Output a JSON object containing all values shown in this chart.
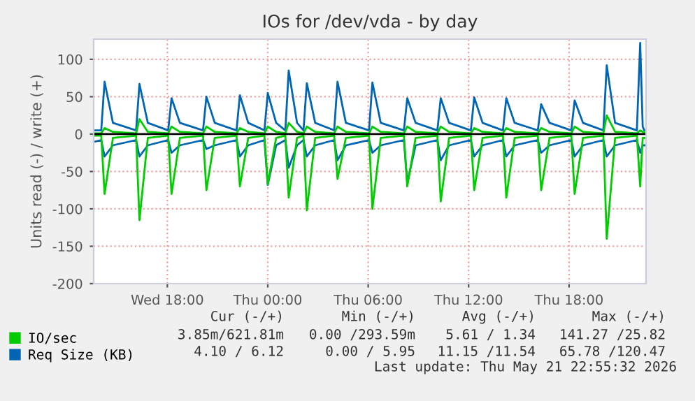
{
  "chart_data": {
    "type": "line",
    "title": "IOs for /dev/vda - by day",
    "ylabel": "Units read (-) / write (+)",
    "x": [
      "2026-05-20T13:42",
      "2026-05-20T14:03",
      "2026-05-20T14:15",
      "2026-05-20T14:45",
      "2026-05-20T16:08",
      "2026-05-20T16:20",
      "2026-05-20T16:50",
      "2026-05-20T18:03",
      "2026-05-20T18:15",
      "2026-05-20T18:45",
      "2026-05-20T20:08",
      "2026-05-20T20:20",
      "2026-05-20T20:50",
      "2026-05-20T22:08",
      "2026-05-20T22:20",
      "2026-05-20T22:50",
      "2026-05-20T23:48",
      "2026-05-21T00:00",
      "2026-05-21T00:30",
      "2026-05-21T01:03",
      "2026-05-21T01:15",
      "2026-05-21T01:45",
      "2026-05-21T02:08",
      "2026-05-21T02:20",
      "2026-05-21T02:50",
      "2026-05-21T03:58",
      "2026-05-21T04:10",
      "2026-05-21T04:40",
      "2026-05-21T06:03",
      "2026-05-21T06:15",
      "2026-05-21T06:45",
      "2026-05-21T08:08",
      "2026-05-21T08:20",
      "2026-05-21T08:50",
      "2026-05-21T10:08",
      "2026-05-21T10:20",
      "2026-05-21T10:50",
      "2026-05-21T12:08",
      "2026-05-21T12:20",
      "2026-05-21T12:50",
      "2026-05-21T14:03",
      "2026-05-21T14:15",
      "2026-05-21T14:45",
      "2026-05-21T16:08",
      "2026-05-21T16:20",
      "2026-05-21T16:50",
      "2026-05-21T18:08",
      "2026-05-21T18:20",
      "2026-05-21T18:50",
      "2026-05-21T20:03",
      "2026-05-21T20:15",
      "2026-05-21T20:45",
      "2026-05-21T22:03",
      "2026-05-21T22:15",
      "2026-05-21T22:24",
      "2026-05-21T22:30"
    ],
    "series": [
      {
        "color": "#0066b3",
        "values": [
          -10,
          -8,
          -30,
          -15,
          -8,
          -30,
          -15,
          -8,
          -25,
          -15,
          -8,
          -20,
          -15,
          -8,
          -30,
          -15,
          -8,
          -68,
          -15,
          -8,
          -45,
          -15,
          -8,
          -30,
          -15,
          -8,
          -35,
          -15,
          -8,
          -25,
          -15,
          -8,
          -65,
          -15,
          -8,
          -35,
          -15,
          -8,
          -30,
          -15,
          -8,
          -30,
          -15,
          -8,
          -25,
          -15,
          -8,
          -30,
          -15,
          -8,
          -30,
          -15,
          -8,
          -25,
          -15,
          -15
        ]
      },
      {
        "name": "Req Size (KB)",
        "color": "#0066b3",
        "values": [
          5,
          5,
          70,
          15,
          5,
          67,
          15,
          5,
          48,
          15,
          5,
          50,
          15,
          5,
          52,
          15,
          5,
          55,
          15,
          5,
          85,
          15,
          5,
          68,
          15,
          5,
          70,
          15,
          5,
          69,
          15,
          5,
          48,
          15,
          5,
          48,
          15,
          5,
          49,
          15,
          5,
          48,
          15,
          5,
          40,
          15,
          5,
          45,
          15,
          5,
          92,
          15,
          5,
          122,
          10,
          5
        ]
      },
      {
        "color": "#00cc00",
        "values": [
          -2,
          -2,
          -80,
          -5,
          -2,
          -115,
          -5,
          -2,
          -80,
          -5,
          -2,
          -75,
          -5,
          -2,
          -70,
          -5,
          -2,
          -67,
          -5,
          -2,
          -85,
          -5,
          -2,
          -102,
          -5,
          -2,
          -60,
          -5,
          -2,
          -100,
          -5,
          -2,
          -70,
          -5,
          -2,
          -90,
          -5,
          -2,
          -75,
          -5,
          -2,
          -85,
          -5,
          -2,
          -75,
          -5,
          -2,
          -80,
          -5,
          -2,
          -140,
          -5,
          -2,
          -70,
          -5,
          -5
        ]
      },
      {
        "name": "IO/sec",
        "color": "#00cc00",
        "values": [
          1,
          1,
          8,
          3,
          1,
          20,
          3,
          1,
          10,
          3,
          1,
          10,
          3,
          1,
          8,
          3,
          1,
          10,
          3,
          1,
          15,
          3,
          1,
          10,
          3,
          1,
          10,
          3,
          1,
          10,
          3,
          1,
          10,
          3,
          1,
          10,
          3,
          1,
          8,
          3,
          1,
          8,
          3,
          1,
          8,
          3,
          1,
          10,
          3,
          1,
          25,
          3,
          1,
          5,
          3,
          2
        ]
      }
    ],
    "xlim": [
      "2026-05-20T13:36",
      "2026-05-21T22:36"
    ],
    "xticks": [
      {
        "value": "2026-05-20T18:00",
        "label": "Wed 18:00"
      },
      {
        "value": "2026-05-21T00:00",
        "label": "Thu 00:00"
      },
      {
        "value": "2026-05-21T06:00",
        "label": "Thu 06:00"
      },
      {
        "value": "2026-05-21T12:00",
        "label": "Thu 12:00"
      },
      {
        "value": "2026-05-21T18:00",
        "label": "Thu 18:00"
      }
    ],
    "ylim": [
      -200,
      127
    ],
    "yticks": [
      -200,
      -150,
      -100,
      -50,
      0,
      50,
      100
    ],
    "ref_lines": [
      {
        "axis": "y",
        "value": 0,
        "color": "#000000"
      }
    ],
    "grid": true,
    "legend": "bottom",
    "line_style": "solid",
    "marker": "none",
    "annotations": [
      "Cur (-/+)",
      "Min (-/+)",
      "Avg (-/+)",
      "Max (-/+)",
      "3.85m/621.81m",
      "0.00 /293.59m",
      "5.61 / 1.34",
      "141.27 /25.82",
      "4.10 / 6.12",
      "0.00 / 5.95",
      "11.15 /11.54",
      "65.78 /120.47",
      "Last update: Thu May 21 22:55:32 2026"
    ]
  }
}
